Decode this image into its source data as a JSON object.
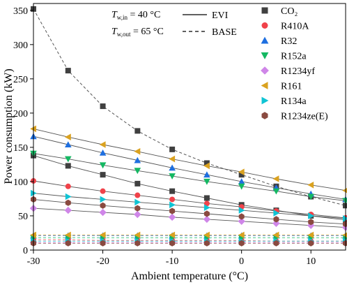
{
  "chart_data": {
    "type": "line",
    "xlabel": "Ambient temperature (°C)",
    "ylabel": "Power consumption (kW)",
    "xlim": [
      -30,
      15
    ],
    "ylim": [
      0,
      360
    ],
    "xticks": [
      -30,
      -20,
      -10,
      0,
      10
    ],
    "yticks": [
      0,
      50,
      100,
      150,
      200,
      250,
      300,
      350
    ],
    "x": [
      -30,
      -25,
      -20,
      -15,
      -10,
      -5,
      0,
      5,
      10,
      15
    ],
    "annotations": {
      "tw_in": {
        "main": "T",
        "sub": "w,in",
        "rest": " = 40 °C"
      },
      "tw_out": {
        "main": "T",
        "sub": "w,out",
        "rest": " = 65 °C"
      }
    },
    "line_styles": [
      {
        "label": "EVI",
        "dash": "solid"
      },
      {
        "label": "BASE",
        "dash": "dashed"
      }
    ],
    "legend_position": "top-right",
    "series": [
      {
        "name": "CO₂",
        "color": "#404040",
        "marker": "square",
        "evi": [
          138,
          123,
          110,
          97,
          86,
          76,
          66,
          58,
          50,
          44
        ],
        "base": [
          352,
          262,
          210,
          174,
          147,
          127,
          110,
          93,
          78,
          65
        ]
      },
      {
        "name": "R410A",
        "color": "#f0424a",
        "marker": "circle",
        "evi": [
          101,
          93,
          86,
          80,
          74,
          68,
          63,
          57,
          52,
          47
        ],
        "base": [
          15,
          15,
          14,
          14,
          14,
          14,
          14,
          13,
          13,
          13
        ]
      },
      {
        "name": "R32",
        "color": "#1e6fe0",
        "marker": "triangle-up",
        "evi": [
          166,
          154,
          142,
          131,
          120,
          110,
          100,
          91,
          82,
          74
        ],
        "base": [
          21,
          21,
          21,
          21,
          21,
          21,
          21,
          21,
          21,
          21
        ]
      },
      {
        "name": "R152a",
        "color": "#14b862",
        "marker": "triangle-down",
        "evi": [
          141,
          133,
          124,
          116,
          108,
          100,
          93,
          86,
          78,
          72
        ],
        "base": [
          18,
          18,
          18,
          18,
          18,
          18,
          18,
          18,
          18,
          18
        ]
      },
      {
        "name": "R1234yf",
        "color": "#cf86e8",
        "marker": "diamond",
        "evi": [
          61,
          58,
          55,
          52,
          48,
          45,
          42,
          39,
          36,
          33
        ],
        "base": [
          11,
          11,
          11,
          11,
          11,
          11,
          11,
          11,
          11,
          11
        ]
      },
      {
        "name": "R161",
        "color": "#daa220",
        "marker": "triangle-left",
        "evi": [
          177,
          165,
          154,
          144,
          133,
          123,
          114,
          104,
          95,
          87
        ],
        "base": [
          22,
          22,
          22,
          22,
          22,
          22,
          22,
          22,
          22,
          22
        ]
      },
      {
        "name": "R134a",
        "color": "#10c4d4",
        "marker": "triangle-right",
        "evi": [
          83,
          78,
          74,
          70,
          66,
          62,
          58,
          54,
          50,
          46
        ],
        "base": [
          13,
          13,
          13,
          13,
          13,
          13,
          13,
          13,
          13,
          13
        ]
      },
      {
        "name": "R1234ze(E)",
        "color": "#8a4a40",
        "marker": "hexagon",
        "evi": [
          74,
          69,
          65,
          61,
          57,
          53,
          49,
          45,
          41,
          38
        ],
        "base": [
          10,
          10,
          10,
          10,
          10,
          10,
          10,
          10,
          10,
          10
        ]
      }
    ]
  }
}
